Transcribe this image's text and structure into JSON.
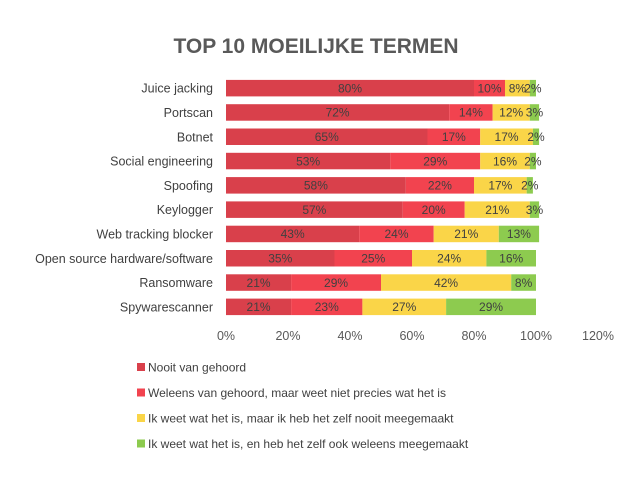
{
  "chart_data": {
    "type": "bar",
    "orientation": "horizontal",
    "stacked": true,
    "title": "TOP 10 MOEILIJKE TERMEN",
    "categories": [
      "Juice jacking",
      "Portscan",
      "Botnet",
      "Social engineering",
      "Spoofing",
      "Keylogger",
      "Web tracking blocker",
      "Open source hardware/software",
      "Ransomware",
      "Spywarescanner"
    ],
    "series": [
      {
        "name": "Nooit van gehoord",
        "color": "#d9404b",
        "values": [
          80,
          72,
          65,
          53,
          58,
          57,
          43,
          35,
          21,
          21
        ],
        "labels": [
          "80%",
          "72%",
          "65%",
          "53%",
          "58%",
          "57%",
          "43%",
          "35%",
          "21%",
          "21%"
        ]
      },
      {
        "name": "Weleens van gehoord, maar weet niet precies wat het is",
        "color": "#f2434f",
        "values": [
          10,
          14,
          17,
          29,
          22,
          20,
          24,
          25,
          29,
          23
        ],
        "labels": [
          "10%",
          "14%",
          "17%",
          "29%",
          "22%",
          "20%",
          "24%",
          "25%",
          "29%",
          "23%"
        ]
      },
      {
        "name": "Ik weet wat het is, maar ik heb het zelf nooit meegemaakt",
        "color": "#fad548",
        "values": [
          8,
          12,
          17,
          16,
          17,
          21,
          21,
          24,
          42,
          27
        ],
        "labels": [
          "8%",
          "12%",
          "17%",
          "16%",
          "17%",
          "21%",
          "21%",
          "24%",
          "42%",
          "27%"
        ]
      },
      {
        "name": "Ik weet wat het is, en heb het zelf ook weleens meegemaakt",
        "color": "#8dcb4f",
        "values": [
          2,
          3,
          2,
          2,
          2,
          3,
          13,
          16,
          8,
          29
        ],
        "labels": [
          "2%",
          "3%",
          "2%",
          "2%",
          "2%",
          "3%",
          "13%",
          "16%",
          "8%",
          "29%"
        ]
      }
    ],
    "xlim": [
      0,
      120
    ],
    "xticks": [
      0,
      20,
      40,
      60,
      80,
      100,
      120
    ],
    "xtick_labels": [
      "0%",
      "20%",
      "40%",
      "60%",
      "80%",
      "100%",
      "120%"
    ],
    "grid": false,
    "legend_position": "bottom"
  }
}
